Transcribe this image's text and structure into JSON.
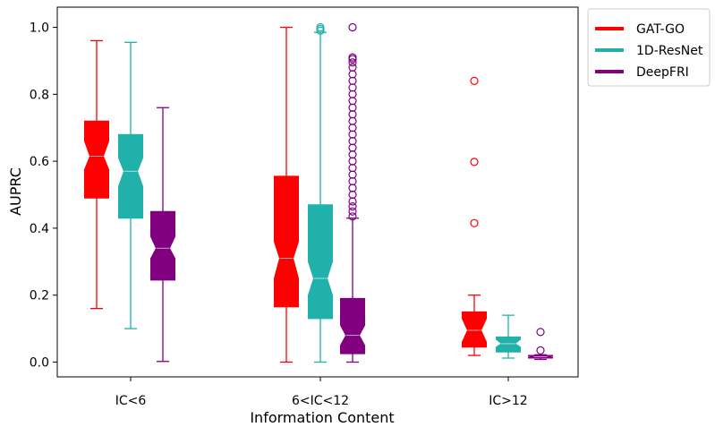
{
  "chart_data": {
    "type": "box",
    "title": "",
    "xlabel": "Information Content",
    "ylabel": "AUPRC",
    "ylim": [
      -0.05,
      1.05
    ],
    "yticks": [
      "0.0",
      "0.2",
      "0.4",
      "0.6",
      "0.8",
      "1.0"
    ],
    "grid": false,
    "notched": true,
    "legend_position": "outside-top-right",
    "categories": [
      "IC<6",
      "6<IC<12",
      "IC>12"
    ],
    "series": [
      {
        "name": "GAT-GO",
        "color": "#ff0000",
        "boxes": [
          {
            "whisker_low": 0.16,
            "q1": 0.49,
            "median": 0.615,
            "q3": 0.72,
            "notch_low": 0.575,
            "notch_high": 0.66,
            "whisker_high": 0.96,
            "outliers": []
          },
          {
            "whisker_low": 0.0,
            "q1": 0.165,
            "median": 0.31,
            "q3": 0.555,
            "notch_low": 0.25,
            "notch_high": 0.36,
            "whisker_high": 1.0,
            "outliers": []
          },
          {
            "whisker_low": 0.02,
            "q1": 0.045,
            "median": 0.095,
            "q3": 0.15,
            "notch_low": 0.06,
            "notch_high": 0.13,
            "whisker_high": 0.2,
            "outliers": [
              0.415,
              0.598,
              0.84
            ]
          }
        ]
      },
      {
        "name": "1D-ResNet",
        "color": "#20b2aa",
        "boxes": [
          {
            "whisker_low": 0.1,
            "q1": 0.43,
            "median": 0.57,
            "q3": 0.68,
            "notch_low": 0.525,
            "notch_high": 0.61,
            "whisker_high": 0.955,
            "outliers": []
          },
          {
            "whisker_low": 0.0,
            "q1": 0.13,
            "median": 0.25,
            "q3": 0.47,
            "notch_low": 0.2,
            "notch_high": 0.3,
            "whisker_high": 0.985,
            "outliers": [
              0.99,
              0.995,
              1.0
            ]
          },
          {
            "whisker_low": 0.012,
            "q1": 0.03,
            "median": 0.055,
            "q3": 0.075,
            "notch_low": 0.045,
            "notch_high": 0.068,
            "whisker_high": 0.14,
            "outliers": []
          }
        ]
      },
      {
        "name": "DeepFRI",
        "color": "#800080",
        "boxes": [
          {
            "whisker_low": 0.002,
            "q1": 0.245,
            "median": 0.34,
            "q3": 0.45,
            "notch_low": 0.31,
            "notch_high": 0.375,
            "whisker_high": 0.76,
            "outliers": []
          },
          {
            "whisker_low": 0.0,
            "q1": 0.025,
            "median": 0.08,
            "q3": 0.19,
            "notch_low": 0.05,
            "notch_high": 0.11,
            "whisker_high": 0.43,
            "outliers": [
              0.435,
              0.45,
              0.465,
              0.48,
              0.5,
              0.52,
              0.54,
              0.56,
              0.58,
              0.6,
              0.62,
              0.64,
              0.66,
              0.68,
              0.7,
              0.72,
              0.74,
              0.76,
              0.78,
              0.8,
              0.82,
              0.84,
              0.86,
              0.88,
              0.895,
              0.905,
              0.91,
              1.0
            ]
          },
          {
            "whisker_low": 0.008,
            "q1": 0.012,
            "median": 0.016,
            "q3": 0.02,
            "notch_low": 0.014,
            "notch_high": 0.018,
            "whisker_high": 0.022,
            "outliers": [
              0.035,
              0.09
            ]
          }
        ]
      }
    ]
  }
}
